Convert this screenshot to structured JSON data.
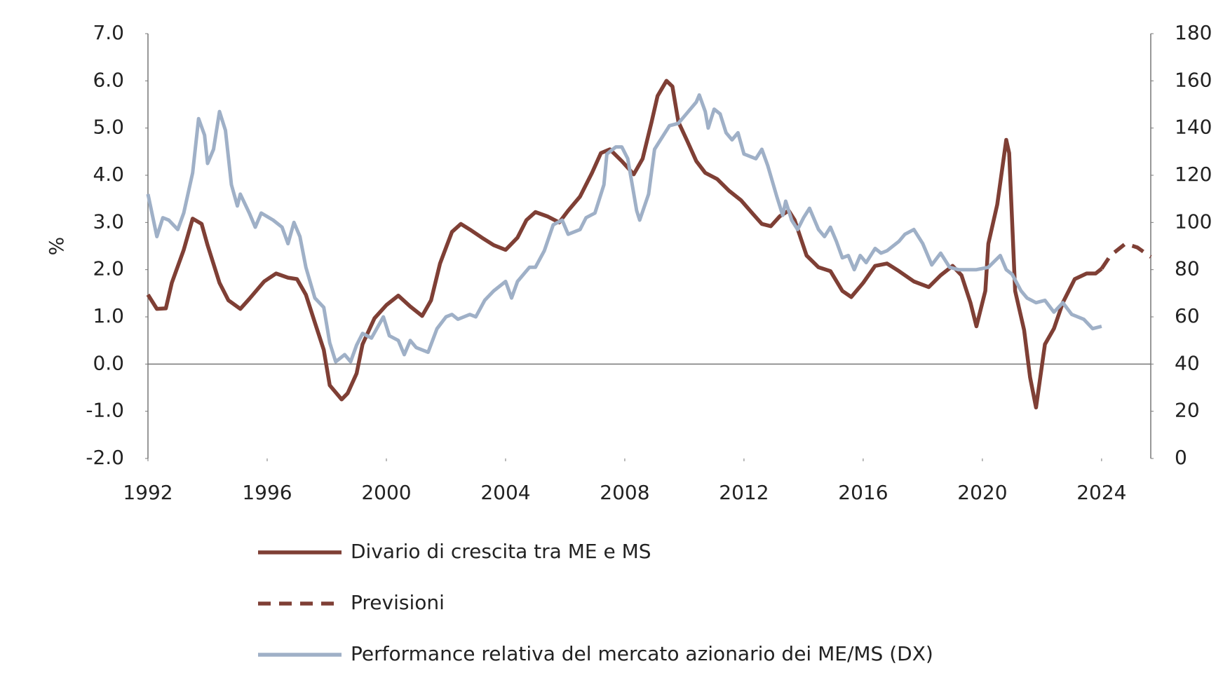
{
  "chart_data": {
    "type": "line",
    "ylabel": "%",
    "xlim": [
      1992,
      2025.65
    ],
    "xticks": [
      1992,
      1996,
      2000,
      2004,
      2008,
      2012,
      2016,
      2020,
      2024
    ],
    "ylim": [
      -2,
      7
    ],
    "yticks": [
      {
        "value": -2,
        "label": "-2.0"
      },
      {
        "value": -1,
        "label": "-1.0"
      },
      {
        "value": 0,
        "label": "0.0"
      },
      {
        "value": 1,
        "label": "1.0"
      },
      {
        "value": 2,
        "label": "2.0"
      },
      {
        "value": 3,
        "label": "3.0"
      },
      {
        "value": 4,
        "label": "4.0"
      },
      {
        "value": 5,
        "label": "5.0"
      },
      {
        "value": 6,
        "label": "6.0"
      },
      {
        "value": 7,
        "label": "7.0"
      }
    ],
    "y2lim": [
      0,
      180
    ],
    "y2ticks": [
      0,
      20,
      40,
      60,
      80,
      100,
      120,
      140,
      160,
      180
    ],
    "legend": "bottom",
    "series": [
      {
        "name": "Divario di crescita tra ME e MS",
        "color": "#7f3f35",
        "dashed": false,
        "x": [
          1992.0,
          1992.3,
          1992.6,
          1992.8,
          1993.2,
          1993.5,
          1993.8,
          1994.0,
          1994.4,
          1994.7,
          1995.1,
          1995.4,
          1995.9,
          1996.3,
          1996.7,
          1997.0,
          1997.3,
          1997.6,
          1997.9,
          1998.1,
          1998.5,
          1998.7,
          1999.0,
          1999.2,
          1999.6,
          2000.0,
          2000.4,
          2000.8,
          2001.2,
          2001.5,
          2001.8,
          2002.2,
          2002.5,
          2002.8,
          2003.2,
          2003.6,
          2004.0,
          2004.4,
          2004.7,
          2005.0,
          2005.4,
          2005.8,
          2006.1,
          2006.5,
          2006.9,
          2007.2,
          2007.5,
          2007.9,
          2008.3,
          2008.6,
          2008.9,
          2009.1,
          2009.4,
          2009.6,
          2009.8,
          2010.1,
          2010.4,
          2010.7,
          2011.1,
          2011.5,
          2011.9,
          2012.3,
          2012.6,
          2012.9,
          2013.2,
          2013.5,
          2013.7,
          2014.1,
          2014.5,
          2014.9,
          2015.3,
          2015.6,
          2016.0,
          2016.4,
          2016.8,
          2017.2,
          2017.7,
          2018.2,
          2018.6,
          2019.0,
          2019.3,
          2019.6,
          2019.8,
          2020.1,
          2020.2,
          2020.5,
          2020.8,
          2020.9,
          2021.1,
          2021.4,
          2021.6,
          2021.8,
          2022.1,
          2022.4,
          2022.7,
          2023.1,
          2023.5,
          2023.8,
          2024.0
        ],
        "values": [
          1.47,
          1.17,
          1.18,
          1.72,
          2.42,
          3.08,
          2.97,
          2.52,
          1.72,
          1.35,
          1.17,
          1.38,
          1.75,
          1.92,
          1.83,
          1.8,
          1.47,
          0.88,
          0.3,
          -0.45,
          -0.75,
          -0.62,
          -0.2,
          0.42,
          0.97,
          1.25,
          1.45,
          1.22,
          1.02,
          1.35,
          2.13,
          2.8,
          2.97,
          2.85,
          2.68,
          2.52,
          2.42,
          2.68,
          3.05,
          3.22,
          3.13,
          3.0,
          3.25,
          3.55,
          4.05,
          4.47,
          4.55,
          4.3,
          4.02,
          4.35,
          5.13,
          5.68,
          6.0,
          5.88,
          5.13,
          4.72,
          4.3,
          4.05,
          3.92,
          3.67,
          3.47,
          3.18,
          2.97,
          2.92,
          3.13,
          3.25,
          3.05,
          2.3,
          2.05,
          1.97,
          1.55,
          1.42,
          1.72,
          2.08,
          2.13,
          1.97,
          1.75,
          1.63,
          1.88,
          2.08,
          1.88,
          1.3,
          0.8,
          1.55,
          2.55,
          3.38,
          4.75,
          4.47,
          1.55,
          0.72,
          -0.28,
          -0.92,
          0.42,
          0.75,
          1.3,
          1.8,
          1.92,
          1.92,
          2.02
        ]
      },
      {
        "name": "Previsioni",
        "color": "#7f3f35",
        "dashed": true,
        "x": [
          2024.0,
          2024.3,
          2024.8,
          2025.2,
          2025.65
        ],
        "values": [
          2.02,
          2.3,
          2.55,
          2.47,
          2.27
        ]
      },
      {
        "name": "Performance relativa del mercato azionario dei ME/MS (DX)",
        "color": "#9fb0c7",
        "dashed": false,
        "axis": "y2",
        "x": [
          1992.0,
          1992.2,
          1992.3,
          1992.5,
          1992.7,
          1993.0,
          1993.2,
          1993.5,
          1993.7,
          1993.9,
          1994.0,
          1994.2,
          1994.4,
          1994.6,
          1994.8,
          1995.0,
          1995.1,
          1995.4,
          1995.6,
          1995.8,
          1996.2,
          1996.5,
          1996.7,
          1996.9,
          1997.1,
          1997.3,
          1997.6,
          1997.9,
          1998.1,
          1998.3,
          1998.6,
          1998.8,
          1999.0,
          1999.2,
          1999.5,
          1999.9,
          2000.1,
          2000.4,
          2000.6,
          2000.8,
          2001.0,
          2001.4,
          2001.7,
          2002.0,
          2002.2,
          2002.4,
          2002.8,
          2003.0,
          2003.3,
          2003.6,
          2004.0,
          2004.2,
          2004.4,
          2004.8,
          2005.0,
          2005.3,
          2005.6,
          2005.9,
          2006.1,
          2006.5,
          2006.7,
          2007.0,
          2007.3,
          2007.4,
          2007.7,
          2007.9,
          2008.1,
          2008.4,
          2008.5,
          2008.8,
          2009.0,
          2009.2,
          2009.5,
          2009.8,
          2010.0,
          2010.4,
          2010.5,
          2010.7,
          2010.8,
          2011.0,
          2011.2,
          2011.4,
          2011.6,
          2011.8,
          2012.0,
          2012.4,
          2012.6,
          2012.8,
          2013.1,
          2013.3,
          2013.4,
          2013.6,
          2013.8,
          2014.0,
          2014.2,
          2014.5,
          2014.7,
          2014.9,
          2015.1,
          2015.3,
          2015.5,
          2015.7,
          2015.9,
          2016.1,
          2016.4,
          2016.6,
          2016.8,
          2017.2,
          2017.4,
          2017.7,
          2018.0,
          2018.3,
          2018.6,
          2018.9,
          2019.2,
          2019.5,
          2019.8,
          2020.2,
          2020.6,
          2020.8,
          2021.0,
          2021.3,
          2021.5,
          2021.8,
          2022.1,
          2022.4,
          2022.7,
          2023.0,
          2023.4,
          2023.7,
          2024.0
        ],
        "values": [
          112,
          100,
          94,
          102,
          101,
          97,
          104,
          121,
          144,
          137,
          125,
          131,
          147,
          139,
          116,
          107,
          112,
          104,
          98,
          104,
          101,
          98,
          91,
          100,
          94,
          81,
          68,
          64,
          49,
          41,
          44,
          41,
          48,
          53,
          51,
          60,
          52,
          50,
          44,
          50,
          47,
          45,
          55,
          60,
          61,
          59,
          61,
          60,
          67,
          71,
          75,
          68,
          75,
          81,
          81,
          88,
          99,
          101,
          95,
          97,
          102,
          104,
          116,
          129,
          132,
          132,
          127,
          105,
          101,
          112,
          131,
          135,
          141,
          142,
          145,
          151,
          154,
          147,
          140,
          148,
          146,
          138,
          135,
          138,
          129,
          127,
          131,
          124,
          111,
          103,
          109,
          101,
          97,
          102,
          106,
          97,
          94,
          98,
          92,
          85,
          86,
          80,
          86,
          83,
          89,
          87,
          88,
          92,
          95,
          97,
          91,
          82,
          87,
          81,
          80,
          80,
          80,
          81,
          86,
          80,
          78,
          71,
          68,
          66,
          67,
          62,
          66,
          61,
          59,
          55,
          56
        ]
      }
    ]
  }
}
